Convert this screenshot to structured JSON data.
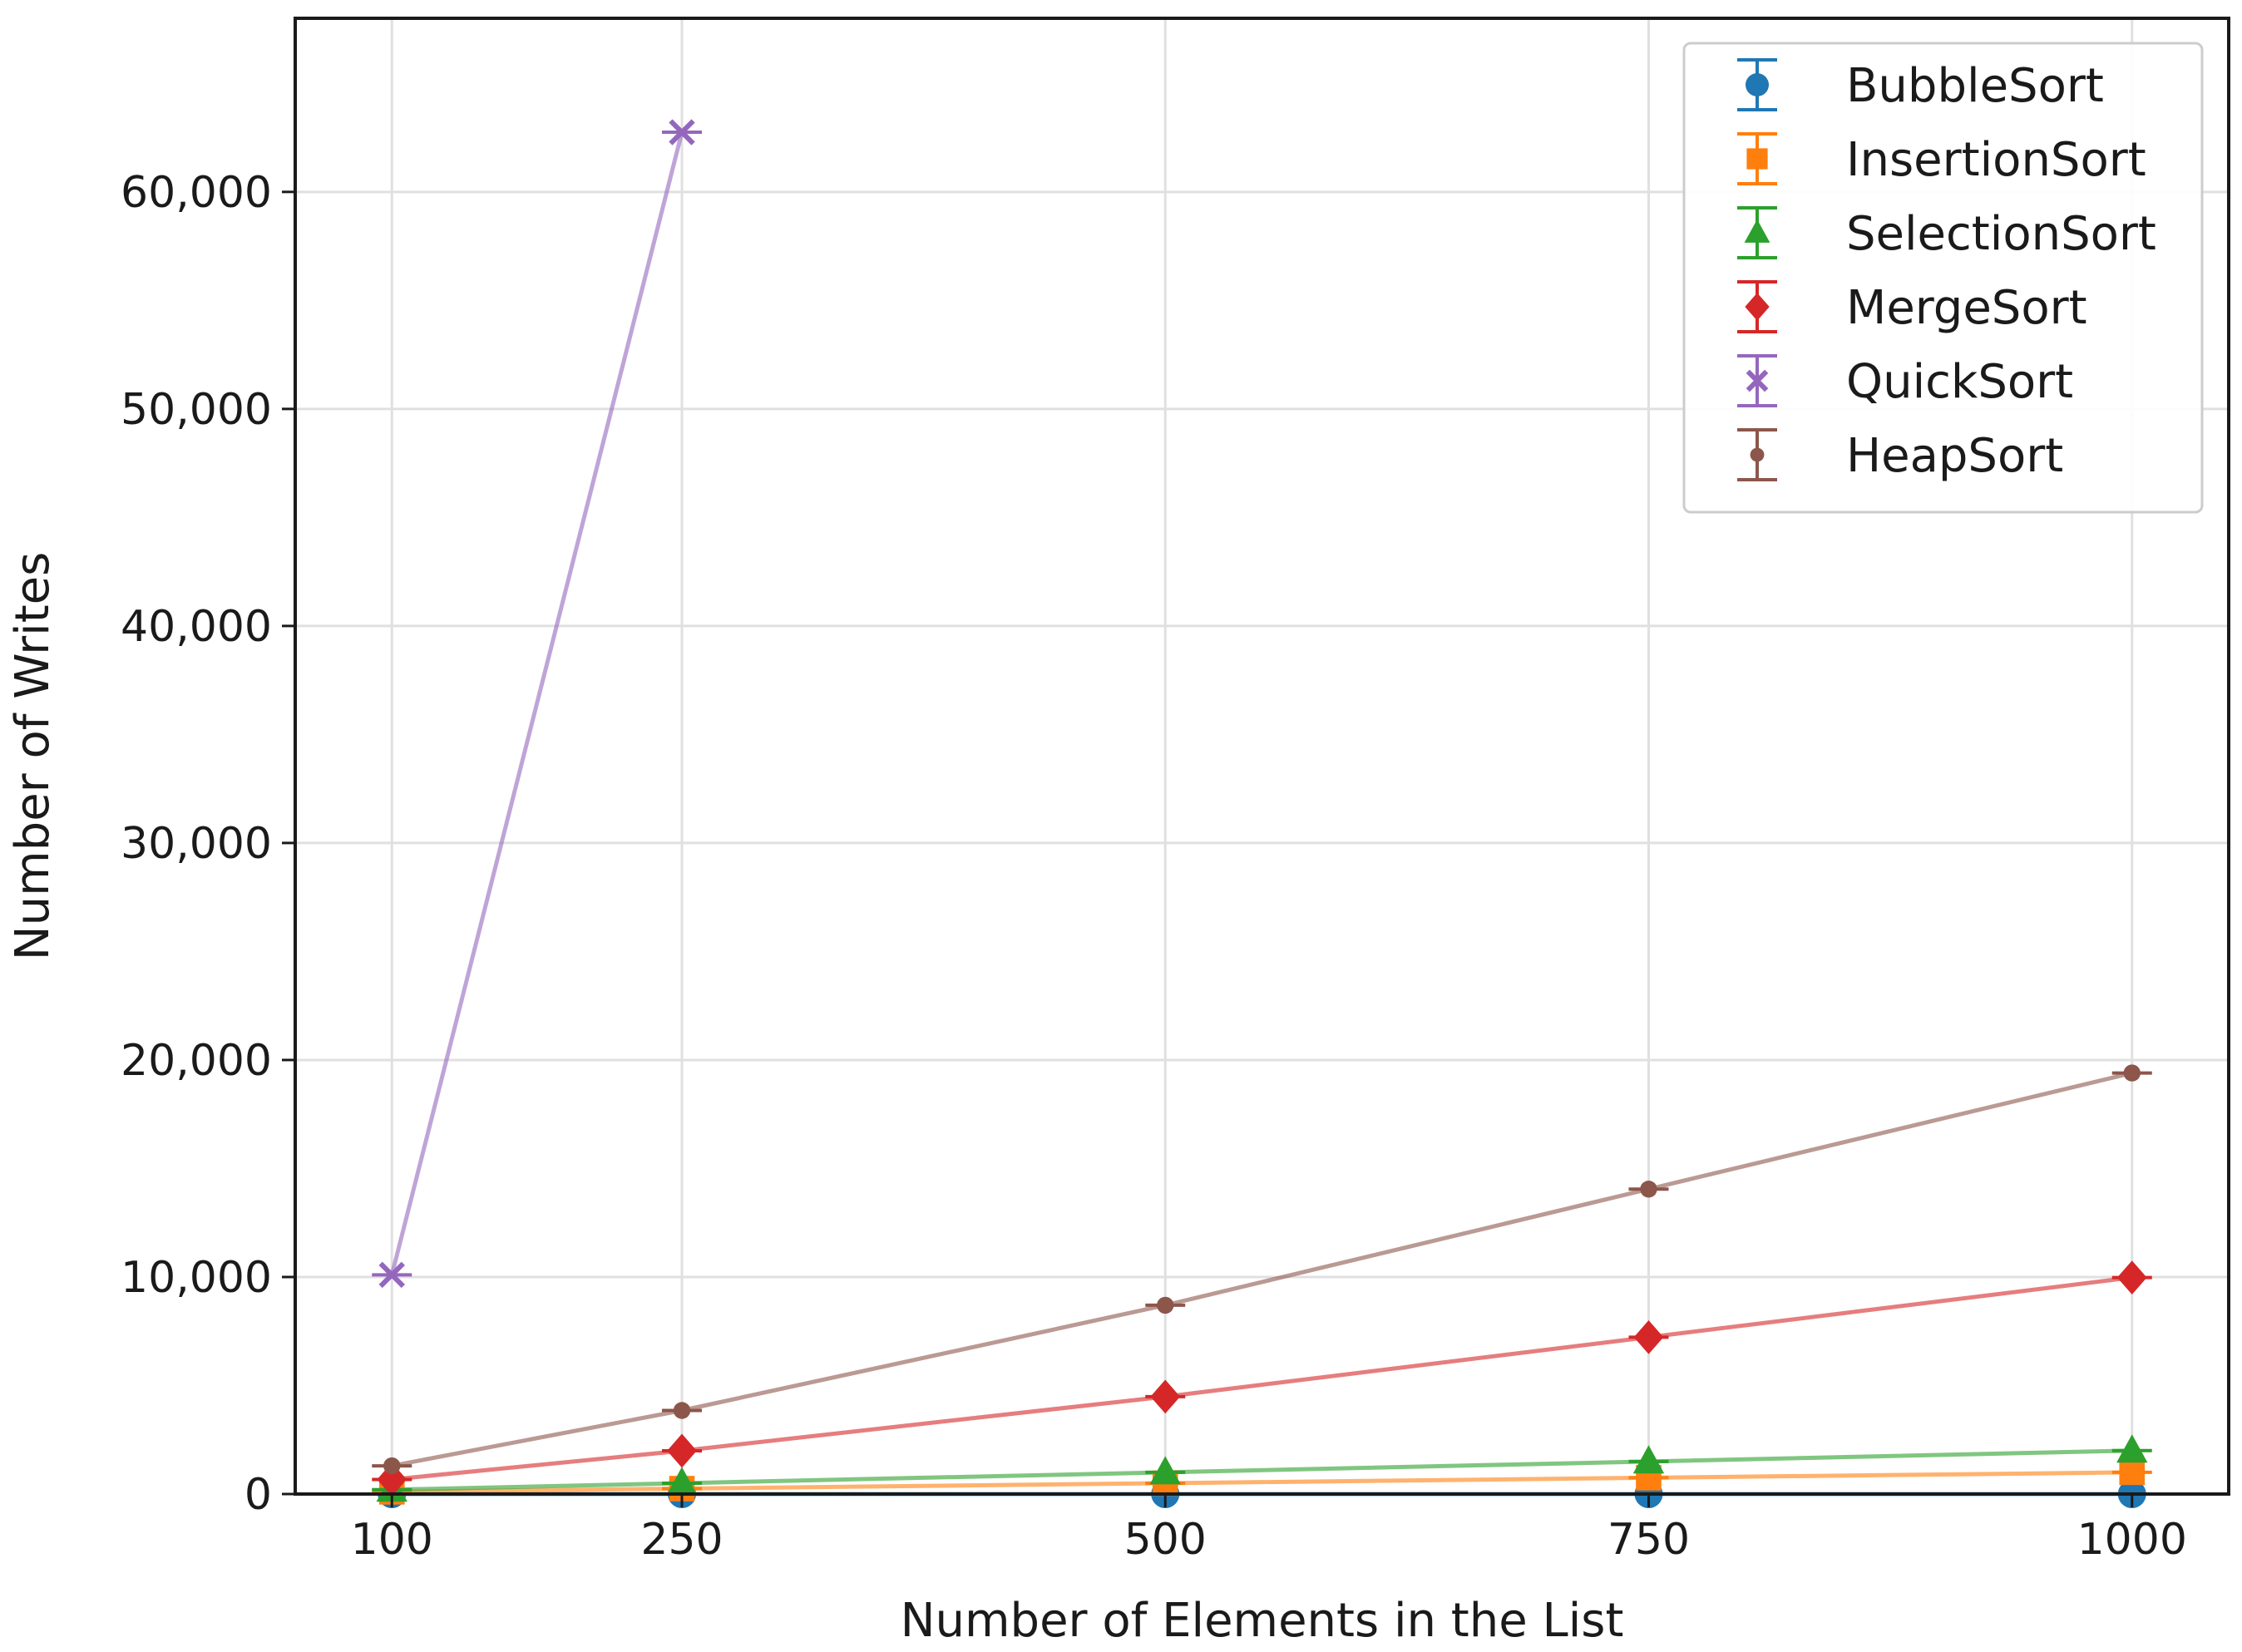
{
  "chart_data": {
    "type": "line",
    "xlabel": "Number of Elements in the List",
    "ylabel": "Number of Writes",
    "x": [
      100,
      250,
      500,
      750,
      1000
    ],
    "x_ticks": [
      100,
      250,
      500,
      750,
      1000
    ],
    "x_tick_labels": [
      "100",
      "250",
      "500",
      "750",
      "1000"
    ],
    "y_ticks": [
      0,
      10000,
      20000,
      30000,
      40000,
      50000,
      60000
    ],
    "y_tick_labels": [
      "0",
      "10,000",
      "20,000",
      "30,000",
      "40,000",
      "50,000",
      "60,000"
    ],
    "xlim": [
      50,
      1050
    ],
    "ylim": [
      0,
      68000
    ],
    "grid": true,
    "legend_position": "top-right",
    "error_bars": true,
    "series": [
      {
        "name": "BubbleSort",
        "color": "#1f77b4",
        "marker": "circle",
        "values": [
          0,
          0,
          0,
          0,
          0
        ]
      },
      {
        "name": "InsertionSort",
        "color": "#ff7f0e",
        "marker": "square",
        "values": [
          100,
          250,
          500,
          750,
          1000
        ]
      },
      {
        "name": "SelectionSort",
        "color": "#2ca02c",
        "marker": "triangle",
        "values": [
          200,
          500,
          1000,
          1500,
          2000
        ]
      },
      {
        "name": "MergeSort",
        "color": "#d62728",
        "marker": "diamond",
        "values": [
          672,
          1994,
          4488,
          7226,
          9976
        ]
      },
      {
        "name": "QuickSort",
        "color": "#9467bd",
        "marker": "x",
        "values": [
          10100,
          62750,
          null,
          null,
          null
        ]
      },
      {
        "name": "HeapSort",
        "color": "#8c564b",
        "marker": "dot",
        "values": [
          1300,
          3850,
          8700,
          14050,
          19400
        ]
      }
    ]
  }
}
